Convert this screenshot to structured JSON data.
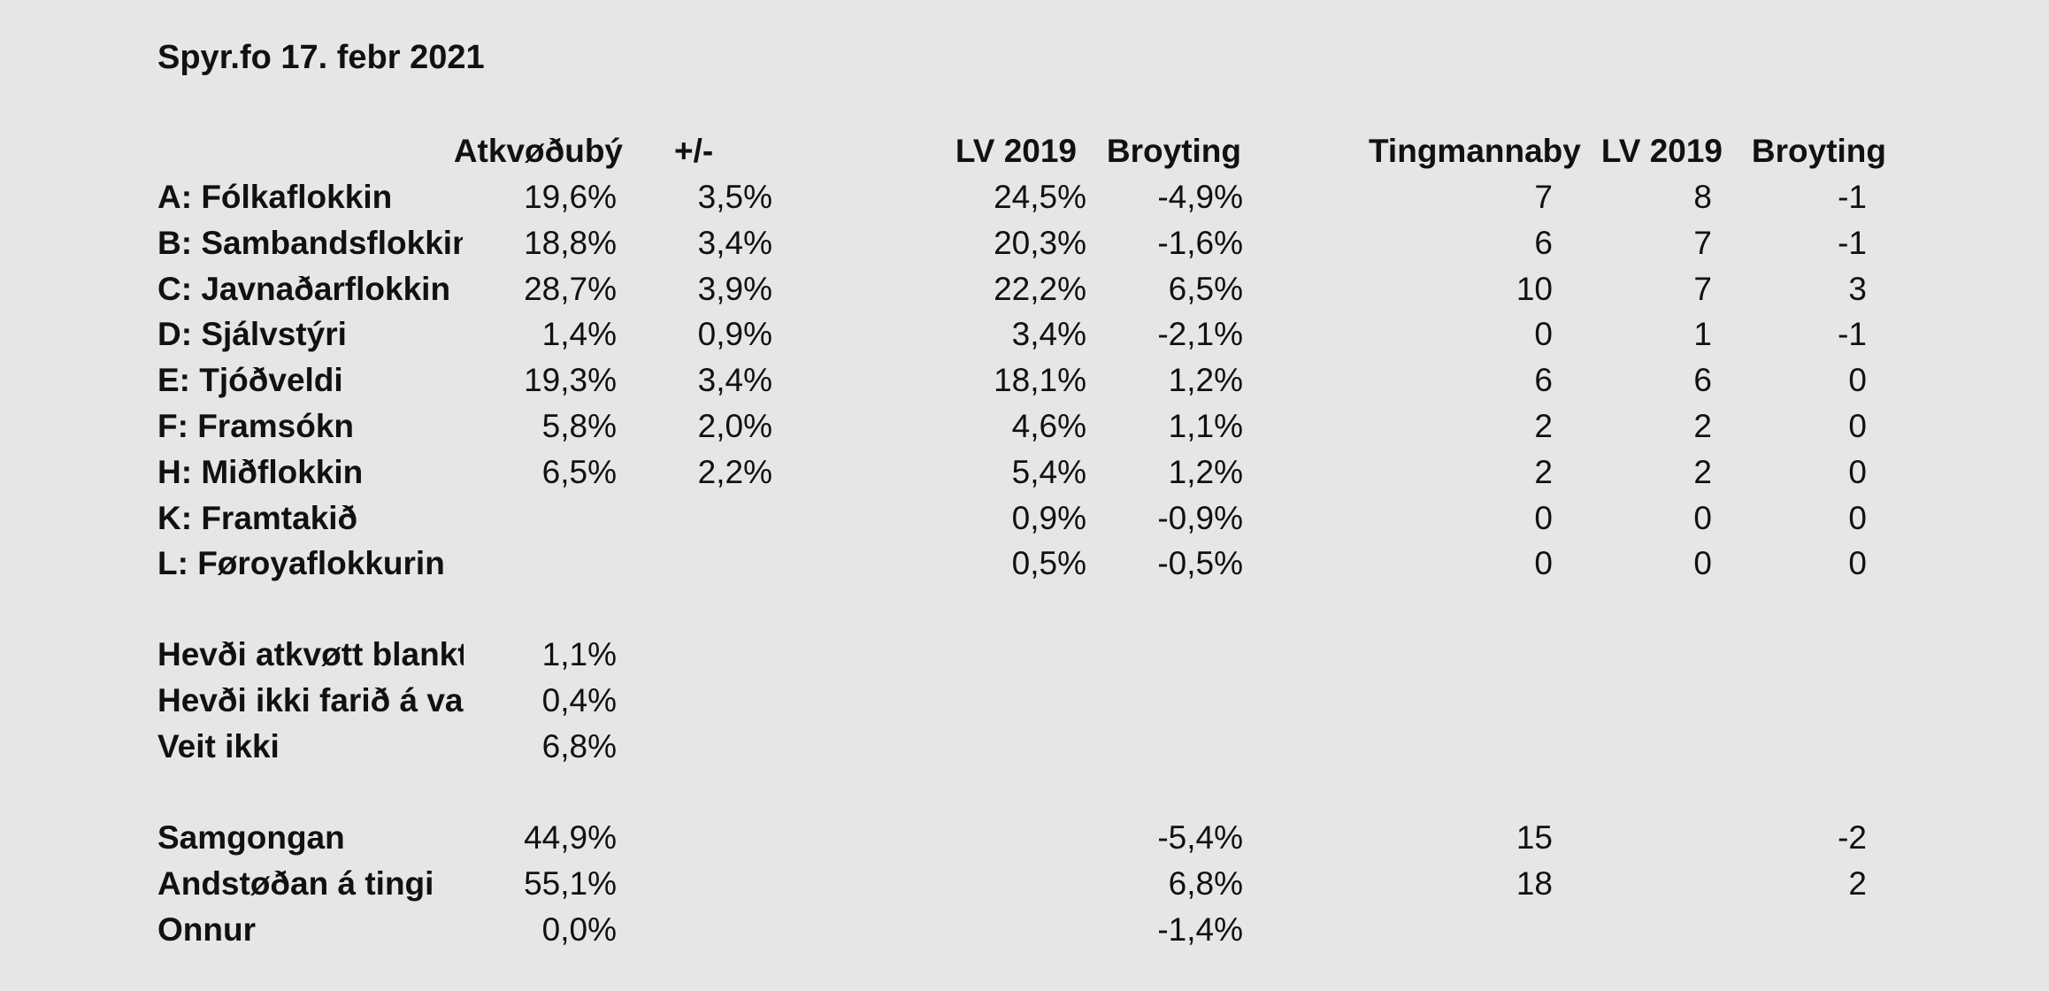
{
  "title": "Spyr.fo 17. febr 2021",
  "headers": {
    "atkvodubyti": "Atkvøðubý",
    "plusminus": "+/-",
    "lv2019_pct": "LV 2019",
    "broyting_pct": "Broyting",
    "tingmannabyti": "Tingmannaby",
    "lv2019_seats": "LV 2019",
    "broyting_seats": "Broyting"
  },
  "parties": [
    {
      "label": "A: Fólkaflokkin",
      "share": "19,6%",
      "pm": "3,5%",
      "lv": "24,5%",
      "change": "-4,9%",
      "seats": "7",
      "lv_seats": "8",
      "seat_change": "-1"
    },
    {
      "label": "B: Sambandsflokkin",
      "share": "18,8%",
      "pm": "3,4%",
      "lv": "20,3%",
      "change": "-1,6%",
      "seats": "6",
      "lv_seats": "7",
      "seat_change": "-1"
    },
    {
      "label": "C: Javnaðarflokkin",
      "share": "28,7%",
      "pm": "3,9%",
      "lv": "22,2%",
      "change": "6,5%",
      "seats": "10",
      "lv_seats": "7",
      "seat_change": "3"
    },
    {
      "label": "D: Sjálvstýri",
      "share": "1,4%",
      "pm": "0,9%",
      "lv": "3,4%",
      "change": "-2,1%",
      "seats": "0",
      "lv_seats": "1",
      "seat_change": "-1"
    },
    {
      "label": "E: Tjóðveldi",
      "share": "19,3%",
      "pm": "3,4%",
      "lv": "18,1%",
      "change": "1,2%",
      "seats": "6",
      "lv_seats": "6",
      "seat_change": "0"
    },
    {
      "label": "F: Framsókn",
      "share": "5,8%",
      "pm": "2,0%",
      "lv": "4,6%",
      "change": "1,1%",
      "seats": "2",
      "lv_seats": "2",
      "seat_change": "0"
    },
    {
      "label": "H: Miðflokkin",
      "share": "6,5%",
      "pm": "2,2%",
      "lv": "5,4%",
      "change": "1,2%",
      "seats": "2",
      "lv_seats": "2",
      "seat_change": "0"
    },
    {
      "label": "K: Framtakið",
      "share": "",
      "pm": "",
      "lv": "0,9%",
      "change": "-0,9%",
      "seats": "0",
      "lv_seats": "0",
      "seat_change": "0"
    },
    {
      "label": "L: Føroyaflokkurin",
      "share": "",
      "pm": "",
      "lv": "0,5%",
      "change": "-0,5%",
      "seats": "0",
      "lv_seats": "0",
      "seat_change": "0"
    }
  ],
  "other_answers": [
    {
      "label": "Hevði atkvøtt blankt",
      "share": "1,1%"
    },
    {
      "label": "Hevði ikki farið á val",
      "share": "0,4%"
    },
    {
      "label": "Veit ikki",
      "share": "6,8%"
    }
  ],
  "summary": [
    {
      "label": "Samgongan",
      "share": "44,9%",
      "change": "-5,4%",
      "seats": "15",
      "seat_change": "-2"
    },
    {
      "label": "Andstøðan á tingi",
      "share": "55,1%",
      "change": "6,8%",
      "seats": "18",
      "seat_change": "2"
    },
    {
      "label": "Onnur",
      "share": "0,0%",
      "change": "-1,4%",
      "seats": "",
      "seat_change": ""
    }
  ]
}
